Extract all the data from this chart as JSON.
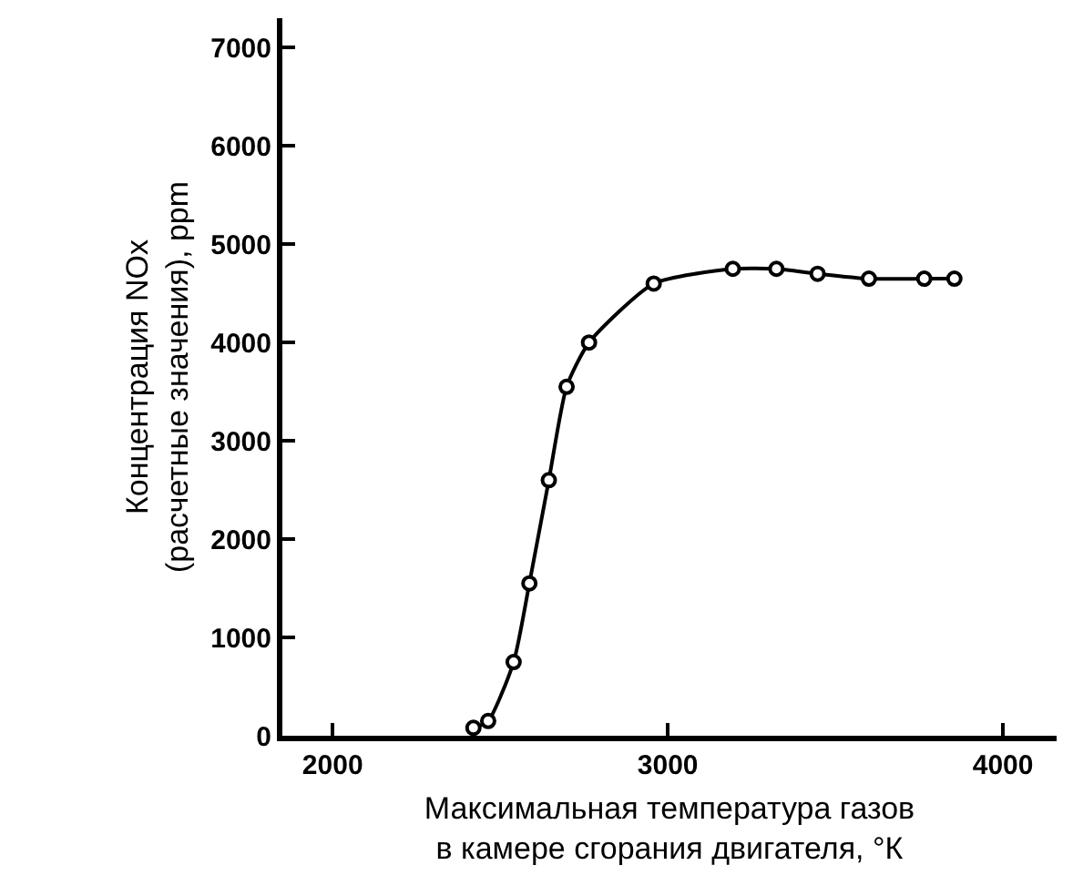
{
  "chart_data": {
    "type": "line",
    "xlabel": "Максимальная температура газов\nв камере сгорания двигателя, °К",
    "ylabel": "Концентрация NOx\n(расчетные значения), ppm",
    "x": [
      2420,
      2464,
      2540,
      2587,
      2645,
      2698,
      2765,
      2958,
      3194,
      3324,
      3447,
      3600,
      3765,
      3855
    ],
    "series": [
      {
        "color": "#000000",
        "values": [
          80,
          150,
          750,
          1550,
          2600,
          3550,
          4000,
          4600,
          4750,
          4750,
          4700,
          4650,
          4650,
          4650
        ]
      }
    ],
    "xlim": [
      1850,
      4160
    ],
    "xticks": [
      2000,
      3000,
      4000
    ],
    "ylim": [
      0,
      7300
    ],
    "yticks": [
      0,
      1000,
      2000,
      3000,
      4000,
      5000,
      6000,
      7000
    ],
    "grid": false,
    "marker": "circle",
    "line_style": "solid"
  }
}
